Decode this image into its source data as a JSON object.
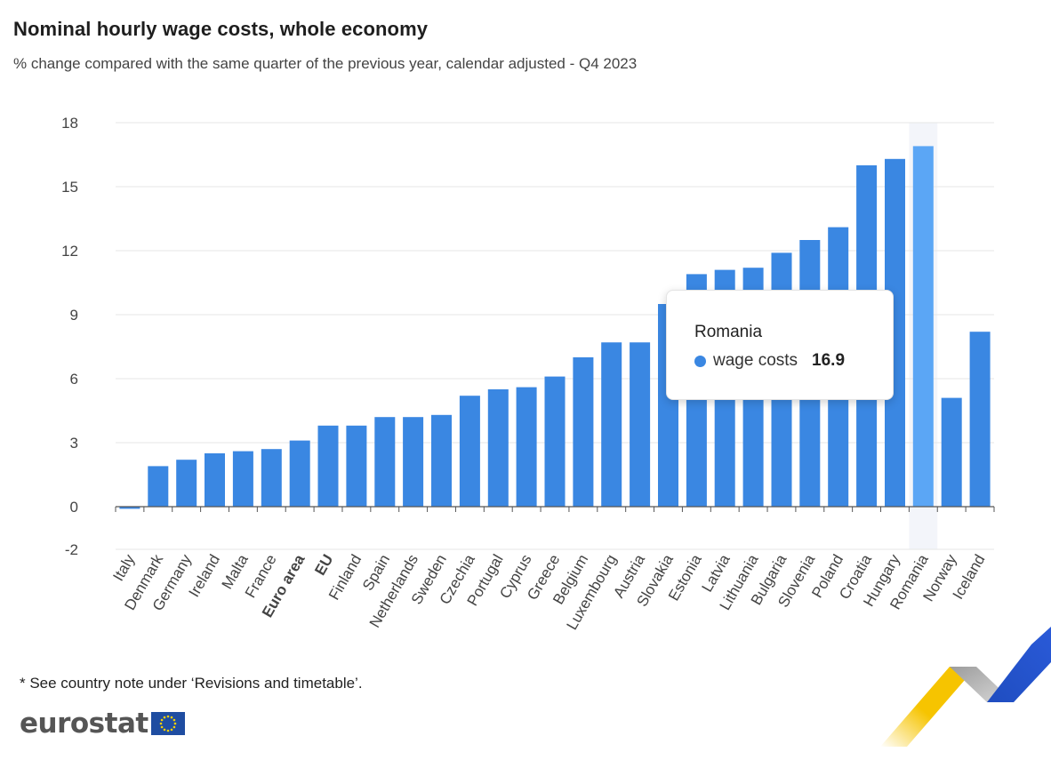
{
  "header": {
    "title": "Nominal hourly wage costs, whole economy",
    "subtitle": "% change compared with the same quarter of the previous year, calendar adjusted - Q4 2023"
  },
  "footnote": "* See country note under ‘Revisions and timetable’.",
  "logo": {
    "text": "eurostat",
    "flag_icon": "eu-flag-icon"
  },
  "decoration": {
    "icon": "eurostat-ribbon-icon"
  },
  "tooltip": {
    "category": "Romania",
    "series_label": "wage costs",
    "value": "16.9"
  },
  "colors": {
    "bar": "#3a87e2",
    "bar_highlight": "#5ba6f5",
    "highlight_band": "#f3f5fa",
    "grid": "#e6e6e6",
    "axis": "#555555"
  },
  "chart_data": {
    "type": "bar",
    "categories": [
      "Italy",
      "Denmark",
      "Germany",
      "Ireland",
      "Malta",
      "France",
      "Euro area",
      "EU",
      "Finland",
      "Spain",
      "Netherlands",
      "Sweden",
      "Czechia",
      "Portugal",
      "Cyprus",
      "Greece",
      "Belgium",
      "Luxembourg",
      "Austria",
      "Slovakia",
      "Estonia",
      "Latvia",
      "Lithuania",
      "Bulgaria",
      "Slovenia",
      "Poland",
      "Croatia",
      "Hungary",
      "Romania",
      "Norway",
      "Iceland"
    ],
    "bold_categories": [
      "Euro area",
      "EU"
    ],
    "highlighted_category": "Romania",
    "series": [
      {
        "name": "wage costs",
        "values": [
          -0.1,
          1.9,
          2.2,
          2.5,
          2.6,
          2.7,
          3.1,
          3.8,
          3.8,
          4.2,
          4.2,
          4.3,
          5.2,
          5.5,
          5.6,
          6.1,
          7.0,
          7.7,
          7.7,
          9.5,
          10.9,
          11.1,
          11.2,
          11.9,
          12.5,
          13.1,
          16.0,
          16.3,
          16.9,
          5.1,
          8.2
        ]
      }
    ],
    "yticks": [
      -2,
      0,
      3,
      6,
      9,
      12,
      15,
      18
    ],
    "ylim": [
      -2,
      18
    ],
    "grid": true,
    "legend": "none"
  }
}
